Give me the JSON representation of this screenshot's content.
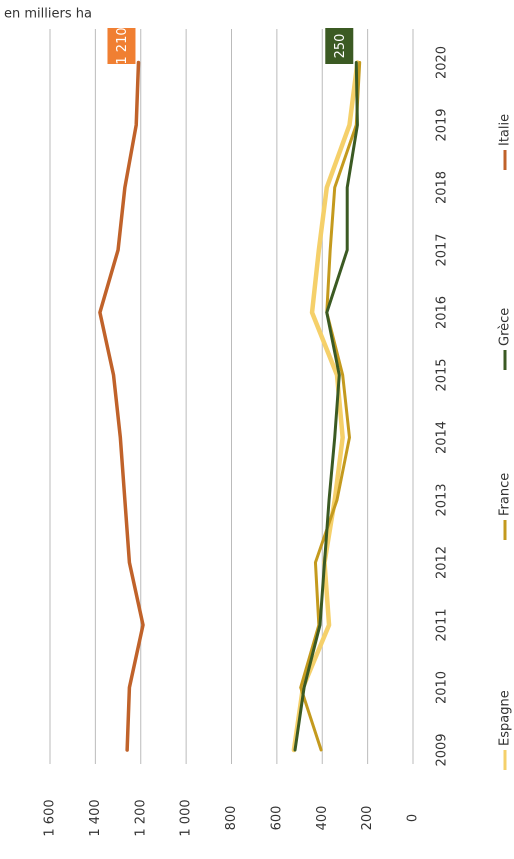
{
  "chart_data": {
    "type": "line",
    "subtitle": "en milliers ha",
    "categories": [
      "2009",
      "2010",
      "2011",
      "2012",
      "2013",
      "2014",
      "2015",
      "2016",
      "2017",
      "2018",
      "2019",
      "2020"
    ],
    "series": [
      {
        "name": "Espagne",
        "color": "#f5d06a",
        "values": [
          525,
          485,
          370,
          390,
          345,
          310,
          335,
          445,
          415,
          380,
          280,
          245
        ]
      },
      {
        "name": "France",
        "color": "#c49a1e",
        "values": [
          405,
          495,
          415,
          430,
          335,
          280,
          310,
          380,
          365,
          345,
          250,
          235
        ]
      },
      {
        "name": "Grèce",
        "color": "#3b5a23",
        "values": [
          520,
          480,
          410,
          390,
          370,
          345,
          325,
          380,
          290,
          290,
          245,
          250
        ]
      },
      {
        "name": "Italie",
        "color": "#c0622a",
        "values": [
          1260,
          1250,
          1190,
          1250,
          1270,
          1290,
          1320,
          1380,
          1300,
          1270,
          1220,
          1210
        ]
      }
    ],
    "annotations": [
      {
        "text": "1 210",
        "color": "#f07f32"
      },
      {
        "text": "250",
        "color": "#3b5a23"
      }
    ],
    "ylim": [
      0,
      1600
    ],
    "yticks": [
      0,
      200,
      400,
      600,
      800,
      {
        "value": 1000,
        "label": "1 000"
      },
      {
        "value": 1200,
        "label": "1 200"
      },
      {
        "value": 1400,
        "label": "1 400"
      },
      {
        "value": 1600,
        "label": "1 600"
      }
    ],
    "grid": true
  }
}
